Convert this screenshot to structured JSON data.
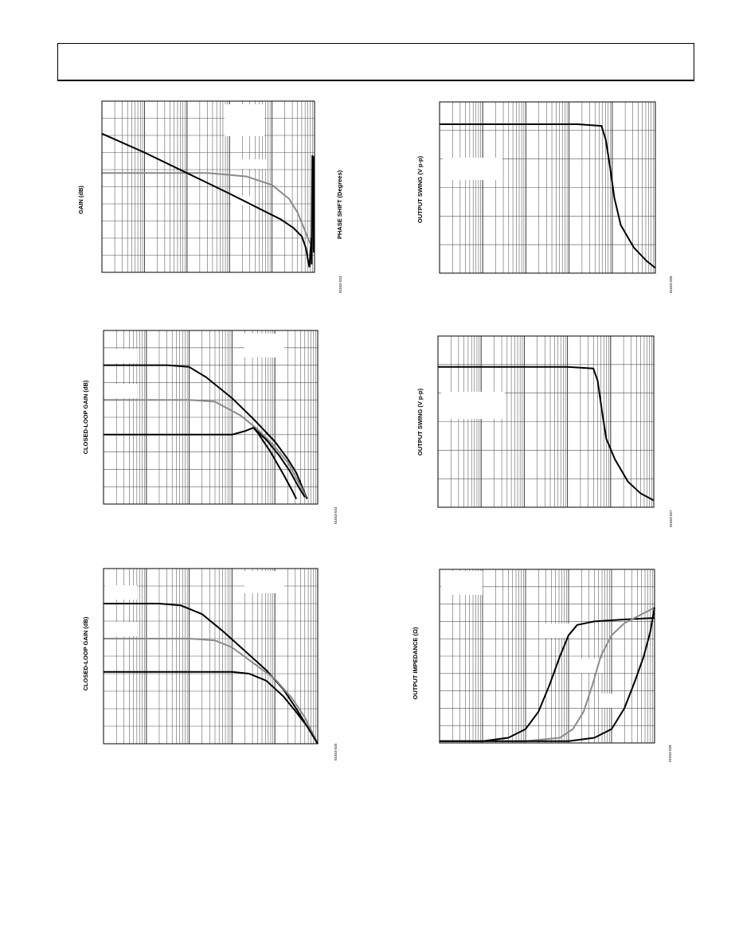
{
  "page": {
    "header_text": ""
  },
  "charts": [
    {
      "id": "gain-phase",
      "ylabel": "GAIN (dB)",
      "y2label": "PHASE SHIFT (Degrees)",
      "figure_id": "01553-023",
      "chart_data": {
        "type": "line",
        "xscale": "log",
        "x_decades": 5,
        "y_divisions": 10,
        "grid": "on",
        "series": [
          {
            "color": "#8a8a8a",
            "values": [
              [
                0,
                0.58
              ],
              [
                2.5,
                0.58
              ],
              [
                3.4,
                0.56
              ],
              [
                4.0,
                0.51
              ],
              [
                4.4,
                0.43
              ],
              [
                4.6,
                0.35
              ],
              [
                4.75,
                0.26
              ],
              [
                4.86,
                0.19
              ],
              [
                4.92,
                0.16
              ]
            ]
          },
          {
            "color": "#000000",
            "values": [
              [
                0,
                0.81
              ],
              [
                1,
                0.7
              ],
              [
                2,
                0.58
              ],
              [
                3,
                0.46
              ],
              [
                3.8,
                0.36
              ],
              [
                4.2,
                0.31
              ],
              [
                4.5,
                0.26
              ],
              [
                4.7,
                0.21
              ],
              [
                4.8,
                0.14
              ],
              [
                4.86,
                0.05
              ],
              [
                4.88,
                0.03
              ]
            ]
          },
          {
            "color": "#000000",
            "values": [
              [
                4.88,
                0.03
              ],
              [
                4.9,
                0.12
              ],
              [
                4.93,
                0.2
              ],
              [
                4.93,
                0.05
              ],
              [
                4.95,
                0.68
              ],
              [
                4.96,
                0.35
              ],
              [
                4.97,
                0.66
              ],
              [
                4.98,
                0.12
              ],
              [
                4.99,
                0.68
              ]
            ]
          }
        ]
      }
    },
    {
      "id": "closed-loop-gain-a",
      "ylabel": "CLOSED-LOOP GAIN (dB)",
      "figure_id": "01553-024",
      "chart_data": {
        "type": "line",
        "xscale": "log",
        "x_decades": 5,
        "y_divisions": 10,
        "grid": "on",
        "series": [
          {
            "color": "#000000",
            "values": [
              [
                0,
                0.8
              ],
              [
                1.5,
                0.8
              ],
              [
                2.0,
                0.79
              ],
              [
                2.4,
                0.73
              ],
              [
                3.0,
                0.61
              ],
              [
                3.5,
                0.49
              ],
              [
                4.0,
                0.36
              ],
              [
                4.3,
                0.26
              ],
              [
                4.5,
                0.18
              ],
              [
                4.7,
                0.06
              ],
              [
                4.75,
                0.03
              ]
            ]
          },
          {
            "color": "#8a8a8a",
            "values": [
              [
                0,
                0.6
              ],
              [
                2.0,
                0.6
              ],
              [
                2.6,
                0.59
              ],
              [
                3.2,
                0.51
              ],
              [
                3.6,
                0.43
              ],
              [
                4.0,
                0.33
              ],
              [
                4.3,
                0.24
              ],
              [
                4.5,
                0.15
              ],
              [
                4.65,
                0.08
              ],
              [
                4.72,
                0.04
              ]
            ]
          },
          {
            "color": "#000000",
            "values": [
              [
                0,
                0.4
              ],
              [
                3.0,
                0.4
              ],
              [
                3.3,
                0.42
              ],
              [
                3.5,
                0.44
              ],
              [
                3.6,
                0.41
              ],
              [
                3.9,
                0.3
              ],
              [
                4.2,
                0.17
              ],
              [
                4.4,
                0.08
              ],
              [
                4.5,
                0.03
              ]
            ]
          },
          {
            "color": "#000000",
            "values": [
              [
                3.5,
                0.44
              ],
              [
                3.8,
                0.37
              ],
              [
                4.1,
                0.28
              ],
              [
                4.35,
                0.19
              ],
              [
                4.55,
                0.1
              ],
              [
                4.7,
                0.04
              ]
            ]
          }
        ]
      }
    },
    {
      "id": "closed-loop-gain-b",
      "ylabel": "CLOSED-LOOP GAIN (dB)",
      "figure_id": "01553-025",
      "chart_data": {
        "type": "line",
        "xscale": "log",
        "x_decades": 5,
        "y_divisions": 10,
        "grid": "on",
        "series": [
          {
            "color": "#000000",
            "values": [
              [
                0,
                0.8
              ],
              [
                1.3,
                0.8
              ],
              [
                1.8,
                0.79
              ],
              [
                2.3,
                0.74
              ],
              [
                2.8,
                0.64
              ],
              [
                3.3,
                0.53
              ],
              [
                3.8,
                0.42
              ],
              [
                4.2,
                0.31
              ],
              [
                4.5,
                0.2
              ],
              [
                4.75,
                0.1
              ],
              [
                5.0,
                0.0
              ]
            ]
          },
          {
            "color": "#8a8a8a",
            "values": [
              [
                0,
                0.6
              ],
              [
                2.0,
                0.6
              ],
              [
                2.6,
                0.59
              ],
              [
                3.0,
                0.55
              ],
              [
                3.5,
                0.46
              ],
              [
                4.0,
                0.37
              ],
              [
                4.4,
                0.26
              ],
              [
                4.7,
                0.15
              ],
              [
                5.0,
                0.0
              ]
            ]
          },
          {
            "color": "#000000",
            "values": [
              [
                0,
                0.41
              ],
              [
                3.0,
                0.41
              ],
              [
                3.4,
                0.4
              ],
              [
                3.8,
                0.36
              ],
              [
                4.2,
                0.27
              ],
              [
                4.5,
                0.18
              ],
              [
                4.75,
                0.1
              ],
              [
                5.0,
                0.0
              ]
            ]
          }
        ]
      }
    },
    {
      "id": "output-swing-a",
      "ylabel": "OUTPUT SWING (V p-p)",
      "figure_id": "01553-026",
      "chart_data": {
        "type": "line",
        "xscale": "log",
        "x_decades": 5,
        "y_divisions": 6,
        "grid": "on",
        "series": [
          {
            "color": "#000000",
            "values": [
              [
                0,
                0.87
              ],
              [
                3.2,
                0.87
              ],
              [
                3.75,
                0.86
              ],
              [
                3.85,
                0.78
              ],
              [
                3.95,
                0.62
              ],
              [
                4.05,
                0.44
              ],
              [
                4.2,
                0.28
              ],
              [
                4.5,
                0.15
              ],
              [
                4.8,
                0.07
              ],
              [
                5.0,
                0.03
              ]
            ]
          }
        ]
      }
    },
    {
      "id": "output-swing-b",
      "ylabel": "OUTPUT SWING (V p-p)",
      "figure_id": "01553-027",
      "chart_data": {
        "type": "line",
        "xscale": "log",
        "x_decades": 5,
        "y_divisions": 6,
        "grid": "on",
        "series": [
          {
            "color": "#000000",
            "values": [
              [
                0,
                0.82
              ],
              [
                3.0,
                0.82
              ],
              [
                3.6,
                0.81
              ],
              [
                3.7,
                0.74
              ],
              [
                3.8,
                0.56
              ],
              [
                3.9,
                0.4
              ],
              [
                4.1,
                0.28
              ],
              [
                4.4,
                0.15
              ],
              [
                4.7,
                0.08
              ],
              [
                5.0,
                0.04
              ]
            ]
          }
        ]
      }
    },
    {
      "id": "output-impedance",
      "ylabel": "OUTPUT IMPEDANCE (Ω)",
      "figure_id": "01553-028",
      "chart_data": {
        "type": "line",
        "xscale": "log",
        "x_decades": 5,
        "y_divisions": 10,
        "grid": "on",
        "series": [
          {
            "color": "#000000",
            "values": [
              [
                0,
                0.01
              ],
              [
                1.0,
                0.01
              ],
              [
                1.6,
                0.03
              ],
              [
                2.0,
                0.08
              ],
              [
                2.3,
                0.18
              ],
              [
                2.55,
                0.33
              ],
              [
                2.8,
                0.5
              ],
              [
                3.0,
                0.62
              ],
              [
                3.2,
                0.68
              ],
              [
                3.6,
                0.7
              ],
              [
                4.2,
                0.71
              ],
              [
                5.0,
                0.72
              ]
            ]
          },
          {
            "color": "#8a8a8a",
            "values": [
              [
                0,
                0.01
              ],
              [
                2.0,
                0.01
              ],
              [
                2.8,
                0.03
              ],
              [
                3.1,
                0.08
              ],
              [
                3.35,
                0.18
              ],
              [
                3.55,
                0.33
              ],
              [
                3.75,
                0.5
              ],
              [
                4.0,
                0.62
              ],
              [
                4.3,
                0.69
              ],
              [
                5.0,
                0.78
              ]
            ]
          },
          {
            "color": "#000000",
            "values": [
              [
                0,
                0.01
              ],
              [
                3.0,
                0.01
              ],
              [
                3.6,
                0.03
              ],
              [
                4.0,
                0.08
              ],
              [
                4.3,
                0.2
              ],
              [
                4.55,
                0.36
              ],
              [
                4.75,
                0.5
              ],
              [
                4.9,
                0.64
              ],
              [
                5.0,
                0.78
              ]
            ]
          }
        ]
      }
    }
  ]
}
